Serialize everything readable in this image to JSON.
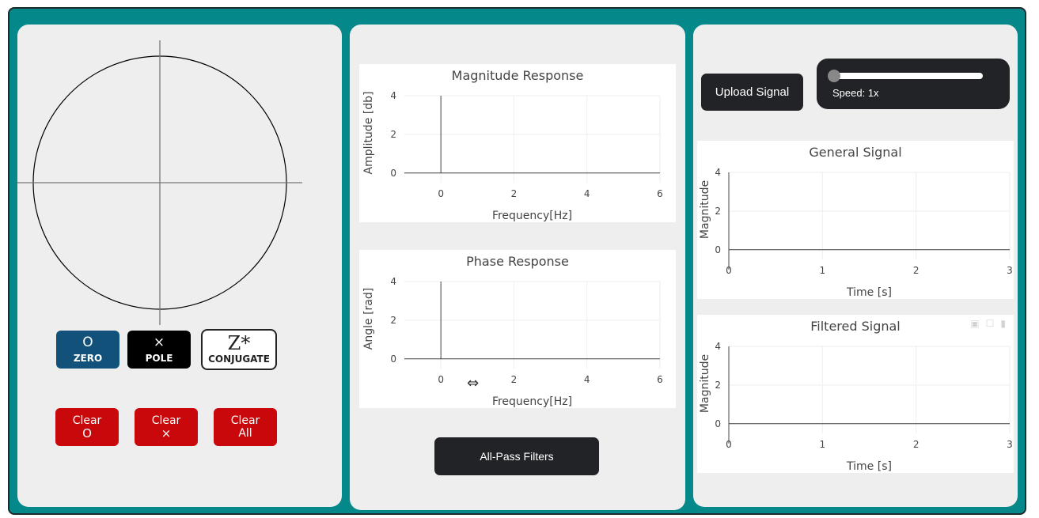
{
  "zero_pole_panel": {
    "buttons": {
      "zero": {
        "symbol": "O",
        "label": "ZERO"
      },
      "pole": {
        "symbol": "×",
        "label": "POLE"
      },
      "conjugate": {
        "symbol": "Z*",
        "label": "CONJUGATE"
      }
    },
    "clear_buttons": {
      "zeros": {
        "label": "Clear",
        "symbol": "O"
      },
      "poles": {
        "label": "Clear",
        "symbol": "×"
      },
      "all": {
        "label": "Clear",
        "symbol": "All"
      }
    },
    "colors": {
      "zero": "#12527a",
      "pole": "#000000",
      "clear": "#c8080a"
    }
  },
  "response_panel": {
    "allpass_label": "All-Pass Filters"
  },
  "signal_panel": {
    "upload_label": "Upload Signal",
    "speed_label": "Speed: 1x",
    "speed_fraction": 0.0
  },
  "chart_data": [
    {
      "id": "magnitude",
      "type": "line",
      "title": "Magnitude Response",
      "xlabel": "Frequency[Hz]",
      "ylabel": "Amplitude [db]",
      "xlim": [
        -1,
        6
      ],
      "ylim": [
        -0.5,
        4
      ],
      "xticks": [
        "0",
        "2",
        "4",
        "6"
      ],
      "yticks": [
        "0",
        "2",
        "4"
      ],
      "series": []
    },
    {
      "id": "phase",
      "type": "line",
      "title": "Phase Response",
      "xlabel": "Frequency[Hz]",
      "ylabel": "Angle [rad]",
      "xlim": [
        -1,
        6
      ],
      "ylim": [
        -0.5,
        4
      ],
      "xticks": [
        "0",
        "2",
        "4",
        "6"
      ],
      "yticks": [
        "0",
        "2",
        "4"
      ],
      "series": []
    },
    {
      "id": "general",
      "type": "line",
      "title": "General Signal",
      "xlabel": "Time [s]",
      "ylabel": "Magnitude",
      "xlim": [
        0,
        3
      ],
      "ylim": [
        -0.5,
        4
      ],
      "xticks": [
        "0",
        "1",
        "2",
        "3"
      ],
      "yticks": [
        "0",
        "2",
        "4"
      ],
      "series": []
    },
    {
      "id": "filtered",
      "type": "line",
      "title": "Filtered Signal",
      "xlabel": "Time [s]",
      "ylabel": "Magnitude",
      "xlim": [
        0,
        3
      ],
      "ylim": [
        -0.5,
        4
      ],
      "xticks": [
        "0",
        "1",
        "2",
        "3"
      ],
      "yticks": [
        "0",
        "2",
        "4"
      ],
      "series": []
    }
  ]
}
